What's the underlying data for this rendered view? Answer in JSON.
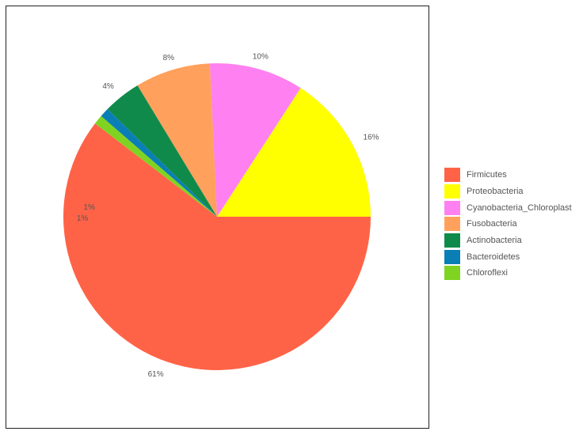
{
  "chart_data": {
    "type": "pie",
    "title": "",
    "slices": [
      {
        "name": "Firmicutes",
        "value": 61,
        "label": "61%",
        "color": "#FF6347"
      },
      {
        "name": "Proteobacteria",
        "value": 16,
        "label": "16%",
        "color": "#FFFF00"
      },
      {
        "name": "Cyanobacteria_Chloroplast",
        "value": 10,
        "label": "10%",
        "color": "#FF80F0"
      },
      {
        "name": "Fusobacteria",
        "value": 8,
        "label": "8%",
        "color": "#FFA15C"
      },
      {
        "name": "Actinobacteria",
        "value": 4,
        "label": "4%",
        "color": "#108A4A"
      },
      {
        "name": "Bacteroidetes",
        "value": 1,
        "label": "1%",
        "color": "#0A7FB5"
      },
      {
        "name": "Chloroflexi",
        "value": 1,
        "label": "1%",
        "color": "#7FD321"
      }
    ],
    "legend_position": "right"
  }
}
